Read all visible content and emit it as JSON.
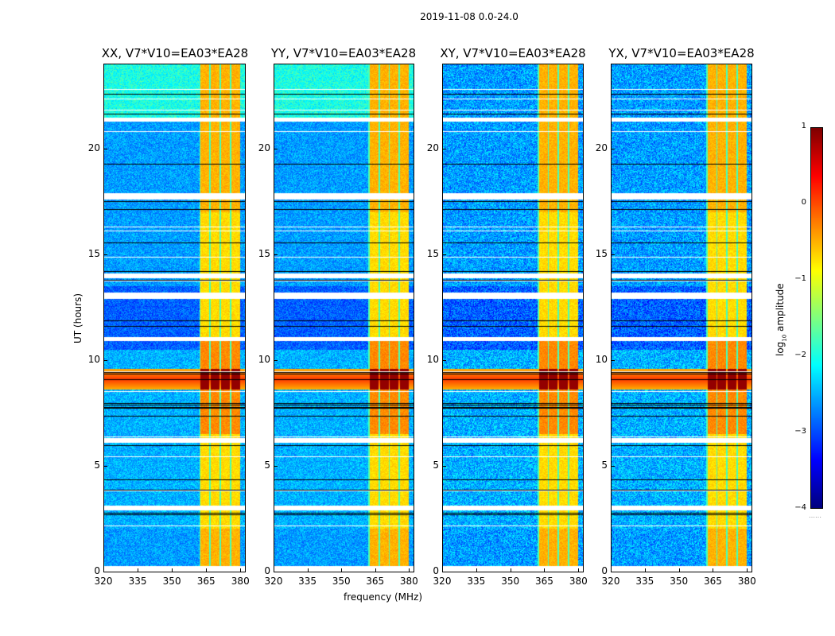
{
  "suptitle": "2019-11-08 0.0-24.0",
  "chart_data": {
    "type": "heatmap",
    "title": "2019-11-08 0.0-24.0",
    "xlabel": "frequency (MHz)",
    "ylabel": "UT (hours)",
    "xlim": [
      320,
      382
    ],
    "ylim": [
      0,
      24
    ],
    "xticks": [
      320,
      335,
      350,
      365,
      380
    ],
    "yticks": [
      0,
      5,
      10,
      15,
      20
    ],
    "panels": [
      {
        "name": "XX",
        "title": "XX, V7*V10=EA03*EA28"
      },
      {
        "name": "YY",
        "title": "YY, V7*V10=EA03*EA28"
      },
      {
        "name": "XY",
        "title": "XY, V7*V10=EA03*EA28"
      },
      {
        "name": "YX",
        "title": "YX, V7*V10=EA03*EA28"
      }
    ],
    "colorbar": {
      "label": "log10 amplitude",
      "label_main": "log",
      "label_sub": "10",
      "label_rest": " amplitude",
      "range": [
        -4,
        1
      ],
      "ticks": [
        1,
        0,
        -1,
        -2,
        -3,
        -4
      ],
      "tick_labels": [
        "1",
        "0",
        "−1",
        "−2",
        "−3",
        "−4"
      ],
      "colormap": "jet"
    },
    "features": {
      "rfi_band_MHz": [
        362,
        380
      ],
      "bright_band_UT_hours": [
        8.6,
        9.6
      ],
      "flagged_gap_UT_hours": [
        [
          0.0,
          0.25
        ],
        [
          2.9,
          3.1
        ],
        [
          6.1,
          6.3
        ],
        [
          10.9,
          11.1
        ],
        [
          12.9,
          13.2
        ],
        [
          13.9,
          14.1
        ],
        [
          17.6,
          17.9
        ],
        [
          21.3,
          21.5
        ]
      ]
    },
    "grid": false,
    "legend": "none"
  },
  "xlabel_text": "frequency (MHz)",
  "ylabel_text": "UT (hours)"
}
